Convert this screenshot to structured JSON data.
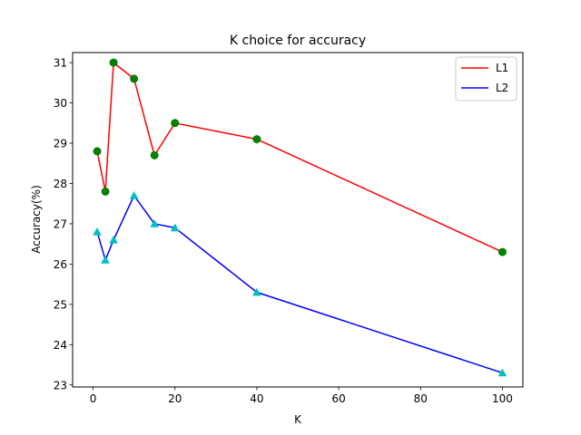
{
  "chart_data": {
    "type": "line",
    "title": "K choice for accuracy",
    "xlabel": "K",
    "ylabel": "Accuracy(%)",
    "xlim": [
      -5,
      105
    ],
    "ylim": [
      22.95,
      31.25
    ],
    "xticks": [
      0,
      20,
      40,
      60,
      80,
      100
    ],
    "yticks": [
      23,
      24,
      25,
      26,
      27,
      28,
      29,
      30,
      31
    ],
    "grid": false,
    "legend_position": "top-right",
    "x": [
      1,
      3,
      5,
      10,
      15,
      20,
      40,
      100
    ],
    "series": [
      {
        "name": "L1",
        "line_color": "#ff0000",
        "marker": "circle",
        "marker_color": "#008000",
        "values": [
          28.8,
          27.8,
          31.0,
          30.6,
          28.7,
          29.5,
          29.1,
          26.3
        ]
      },
      {
        "name": "L2",
        "line_color": "#0000ff",
        "marker": "triangle",
        "marker_color": "#00bfbf",
        "values": [
          26.8,
          26.1,
          26.6,
          27.7,
          27.0,
          26.9,
          25.3,
          23.3
        ]
      }
    ]
  }
}
